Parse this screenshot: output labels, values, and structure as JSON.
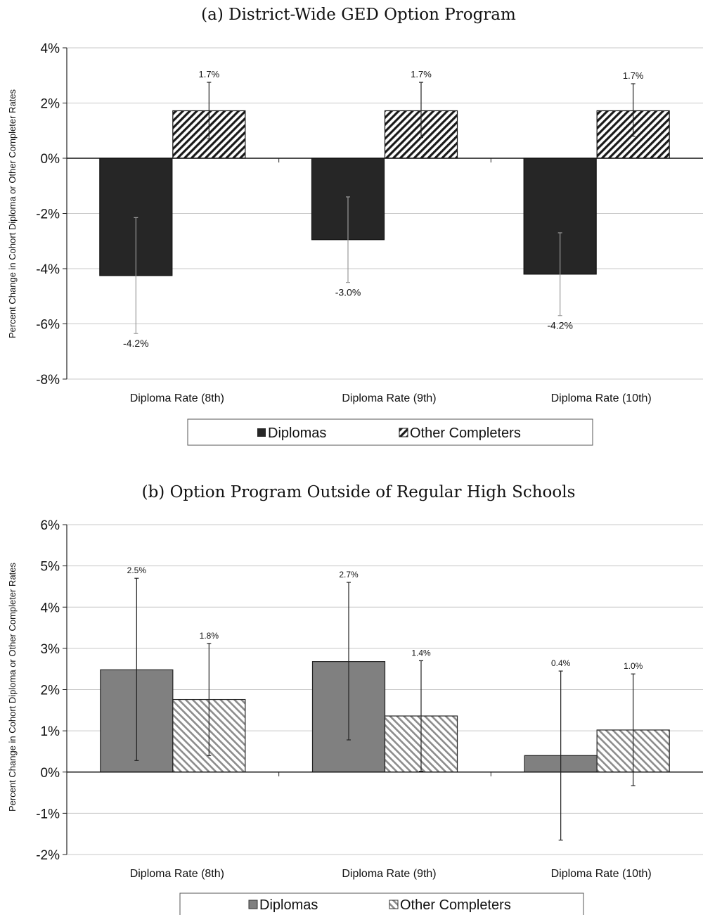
{
  "chart_data": [
    {
      "type": "bar",
      "title": "(a) District-Wide GED Option Program",
      "ylabel": "Percent Change in Cohort Diploma or Other Completer Rates",
      "categories": [
        "Diploma Rate (8th)",
        "Diploma Rate (9th)",
        "Diploma Rate (10th)"
      ],
      "ylim": [
        -8,
        4
      ],
      "yticks": [
        4,
        2,
        0,
        -2,
        -4,
        -6,
        -8
      ],
      "ytick_labels": [
        "4%",
        "2%",
        "0%",
        "-2%",
        "-4%",
        "-6%",
        "-8%"
      ],
      "grid": true,
      "legend_position": "bottom",
      "series": [
        {
          "name": "Diplomas",
          "values": [
            -4.25,
            -2.95,
            -4.2
          ],
          "labels": [
            "-4.2%",
            "-3.0%",
            "-4.2%"
          ],
          "err_low": [
            -6.35,
            -4.5,
            -5.7
          ],
          "err_high": [
            -2.15,
            -1.4,
            -2.7
          ],
          "fill": "#262626",
          "pattern": "solid"
        },
        {
          "name": "Other Completers",
          "values": [
            1.72,
            1.72,
            1.72
          ],
          "labels": [
            "1.7%",
            "1.7%",
            "1.7%"
          ],
          "err_low": [
            0.7,
            0.75,
            0.8
          ],
          "err_high": [
            2.75,
            2.75,
            2.7
          ],
          "fill": "#1a1a1a",
          "pattern": "hatch"
        }
      ]
    },
    {
      "type": "bar",
      "title": "(b) Option Program Outside of Regular High Schools",
      "ylabel": "Percent Change in Cohort Diploma or Other Completer Rates",
      "categories": [
        "Diploma Rate (8th)",
        "Diploma Rate (9th)",
        "Diploma Rate (10th)"
      ],
      "ylim": [
        -2,
        6
      ],
      "yticks": [
        6,
        5,
        4,
        3,
        2,
        1,
        0,
        -1,
        -2
      ],
      "ytick_labels": [
        "6%",
        "5%",
        "4%",
        "3%",
        "2%",
        "1%",
        "0%",
        "-1%",
        "-2%"
      ],
      "grid": true,
      "legend_position": "bottom",
      "series": [
        {
          "name": "Diplomas",
          "values": [
            2.48,
            2.68,
            0.4
          ],
          "labels": [
            "2.5%",
            "2.7%",
            "0.4%"
          ],
          "err_low": [
            0.28,
            0.78,
            -1.65
          ],
          "err_high": [
            4.7,
            4.6,
            2.45
          ],
          "fill": "#808080",
          "pattern": "solid"
        },
        {
          "name": "Other Completers",
          "values": [
            1.76,
            1.36,
            1.02
          ],
          "labels": [
            "1.8%",
            "1.4%",
            "1.0%"
          ],
          "err_low": [
            0.4,
            0.02,
            -0.33
          ],
          "err_high": [
            3.12,
            2.7,
            2.38
          ],
          "fill": "#8c8c8c",
          "pattern": "hatch"
        }
      ]
    }
  ]
}
